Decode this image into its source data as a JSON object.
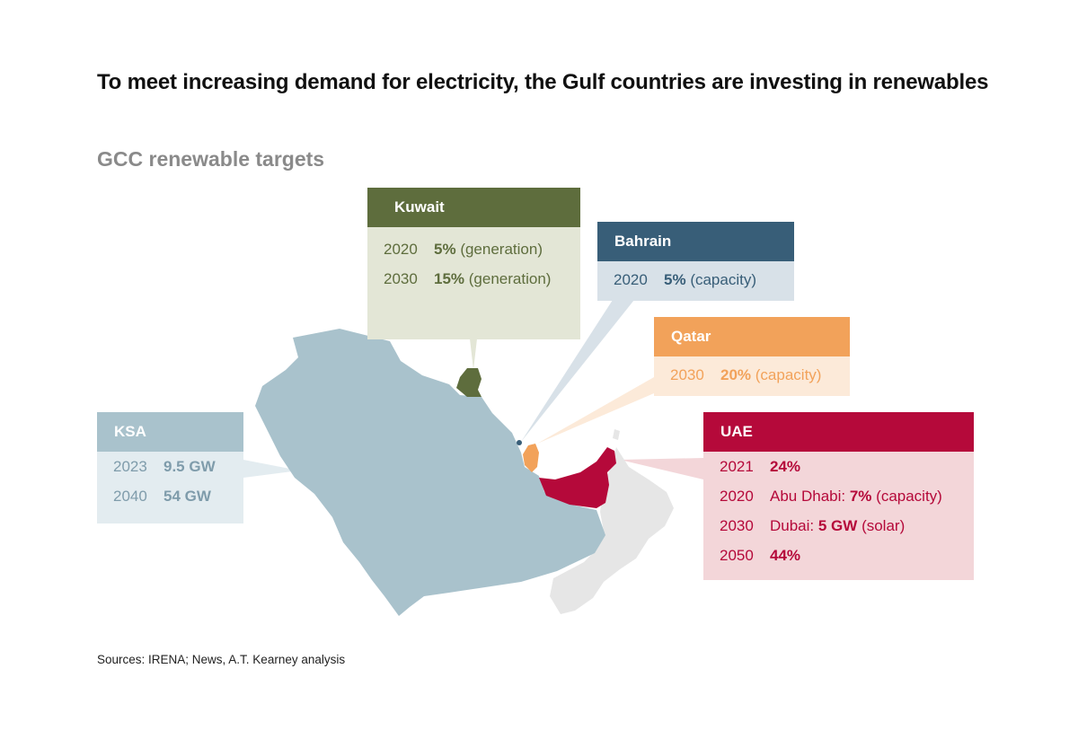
{
  "title": "To meet increasing demand for electricity, the Gulf countries are investing in renewables",
  "subtitle": "GCC renewable targets",
  "source": "Sources: IRENA; News, A.T. Kearney analysis",
  "colors": {
    "kuwait": "#5e6d3d",
    "bahrain": "#385e78",
    "qatar": "#f2a25a",
    "ksa": "#a9c2cc",
    "uae": "#b5093a",
    "oman": "#e5e5e5"
  },
  "countries": {
    "kuwait": {
      "name": "Kuwait",
      "targets": [
        {
          "year": "2020",
          "value": "5%",
          "note": "(generation)"
        },
        {
          "year": "2030",
          "value": "15%",
          "note": "(generation)"
        }
      ]
    },
    "bahrain": {
      "name": "Bahrain",
      "targets": [
        {
          "year": "2020",
          "value": "5%",
          "note": "(capacity)"
        }
      ]
    },
    "qatar": {
      "name": "Qatar",
      "targets": [
        {
          "year": "2030",
          "value": "20%",
          "note": "(capacity)"
        }
      ]
    },
    "ksa": {
      "name": "KSA",
      "targets": [
        {
          "year": "2023",
          "value": "9.5 GW"
        },
        {
          "year": "2040",
          "value": "54 GW"
        }
      ]
    },
    "uae": {
      "name": "UAE",
      "targets": [
        {
          "year": "2021",
          "prefix": "",
          "value": "24%",
          "note": ""
        },
        {
          "year": "2020",
          "prefix": "Abu Dhabi: ",
          "value": "7%",
          "note": "(capacity)"
        },
        {
          "year": "2030",
          "prefix": "Dubai: ",
          "value": "5 GW",
          "note": "(solar)"
        },
        {
          "year": "2050",
          "prefix": "",
          "value": "44%",
          "note": ""
        }
      ]
    }
  }
}
